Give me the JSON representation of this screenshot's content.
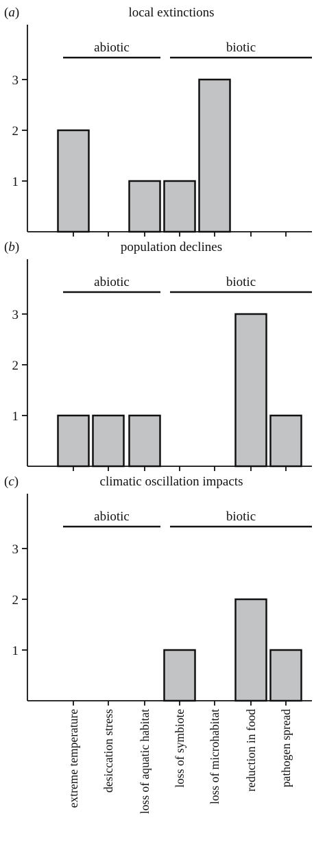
{
  "figure": {
    "categories": [
      "extreme temperature",
      "desiccation stress",
      "loss of aquatic habitat",
      "loss of symbiote",
      "loss of microhabitat",
      "reduction in food",
      "pathogen spread"
    ],
    "groups": [
      {
        "label": "abiotic",
        "first_category": 0,
        "last_category": 2
      },
      {
        "label": "biotic",
        "first_category": 3,
        "last_category": 6
      }
    ],
    "y_ticks": [
      "1",
      "2",
      "3"
    ]
  },
  "chart_data": [
    {
      "panel": "(a)",
      "panel_letter": "a",
      "type": "bar",
      "title": "local extinctions",
      "categories": [
        "extreme temperature",
        "desiccation stress",
        "loss of aquatic habitat",
        "loss of symbiote",
        "loss of microhabitat",
        "reduction in food",
        "pathogen spread"
      ],
      "values": [
        2,
        0,
        1,
        1,
        3,
        0,
        0
      ],
      "ylim": [
        0,
        4
      ],
      "yticks": [
        1,
        2,
        3
      ],
      "groups": [
        "abiotic",
        "biotic"
      ],
      "grid": false
    },
    {
      "panel": "(b)",
      "panel_letter": "b",
      "type": "bar",
      "title": "population declines",
      "categories": [
        "extreme temperature",
        "desiccation stress",
        "loss of aquatic habitat",
        "loss of symbiote",
        "loss of microhabitat",
        "reduction in food",
        "pathogen spread"
      ],
      "values": [
        1,
        1,
        1,
        0,
        0,
        3,
        1
      ],
      "ylim": [
        0,
        4
      ],
      "yticks": [
        1,
        2,
        3
      ],
      "groups": [
        "abiotic",
        "biotic"
      ],
      "grid": false
    },
    {
      "panel": "(c)",
      "panel_letter": "c",
      "type": "bar",
      "title": "climatic oscillation impacts",
      "categories": [
        "extreme temperature",
        "desiccation stress",
        "loss of aquatic habitat",
        "loss of symbiote",
        "loss of microhabitat",
        "reduction in food",
        "pathogen spread"
      ],
      "values": [
        0,
        0,
        0,
        1,
        0,
        2,
        1
      ],
      "ylim": [
        0,
        4
      ],
      "yticks": [
        1,
        2,
        3
      ],
      "groups": [
        "abiotic",
        "biotic"
      ],
      "grid": false
    }
  ]
}
